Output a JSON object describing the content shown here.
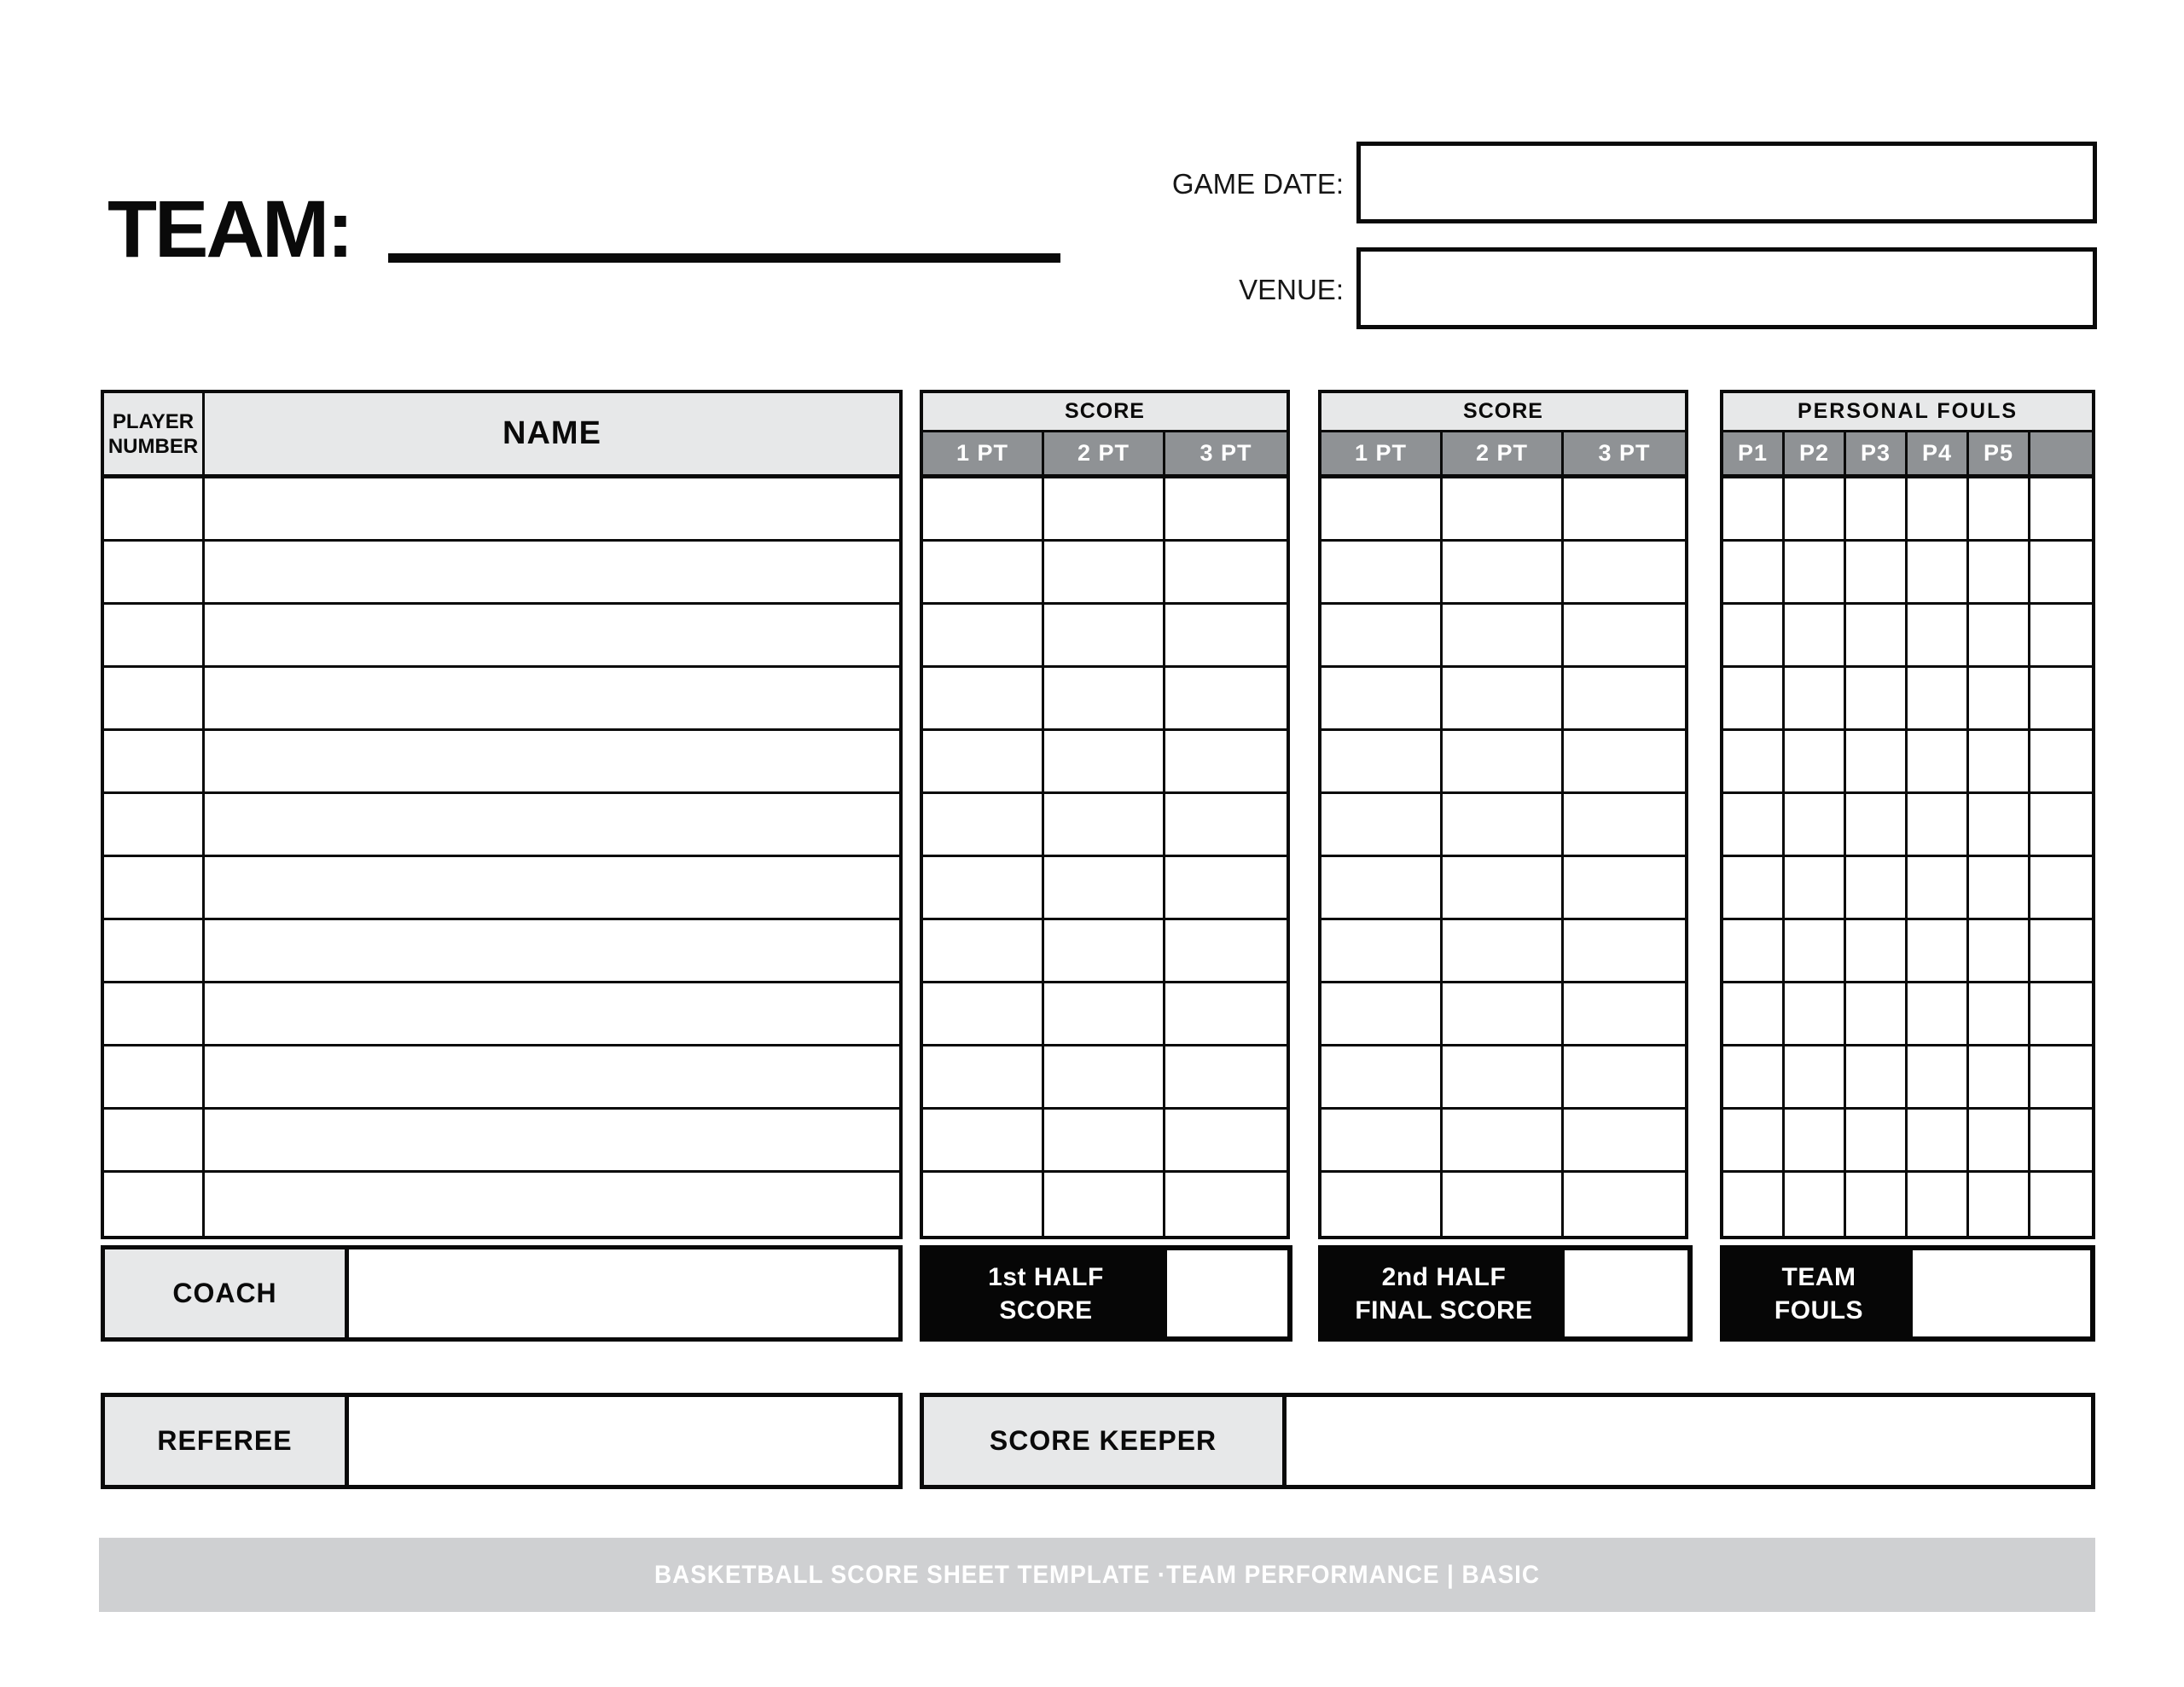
{
  "header": {
    "team_label": "TEAM:",
    "game_date_label": "GAME DATE:",
    "game_date_value": "",
    "venue_label": "VENUE:",
    "venue_value": ""
  },
  "roster": {
    "player_number_header": "PLAYER NUMBER",
    "name_header": "NAME",
    "row_count": 12
  },
  "score_tables": [
    {
      "title": "SCORE",
      "columns": [
        "1 PT",
        "2 PT",
        "3 PT"
      ]
    },
    {
      "title": "SCORE",
      "columns": [
        "1 PT",
        "2 PT",
        "3 PT"
      ]
    }
  ],
  "fouls_table": {
    "title": "PERSONAL FOULS",
    "columns": [
      "P1",
      "P2",
      "P3",
      "P4",
      "P5",
      ""
    ]
  },
  "summary": {
    "coach_label": "COACH",
    "coach_value": "",
    "first_half": {
      "line1": "1st HALF",
      "line2": "SCORE",
      "value": ""
    },
    "second_half": {
      "line1": "2nd HALF",
      "line2": "FINAL SCORE",
      "value": ""
    },
    "team_fouls": {
      "line1": "TEAM",
      "line2": "FOULS",
      "value": ""
    }
  },
  "officials": {
    "referee_label": "REFEREE",
    "referee_value": "",
    "score_keeper_label": "SCORE KEEPER",
    "score_keeper_value": ""
  },
  "footer": {
    "text": "BASKETBALL SCORE SHEET TEMPLATE ·TEAM PERFORMANCE | BASIC"
  },
  "colors": {
    "header_bg": "#e7e8e9",
    "subheader_bg": "#8f9295",
    "footer_bg": "#cfd0d2",
    "ink": "#0a0a0a"
  }
}
